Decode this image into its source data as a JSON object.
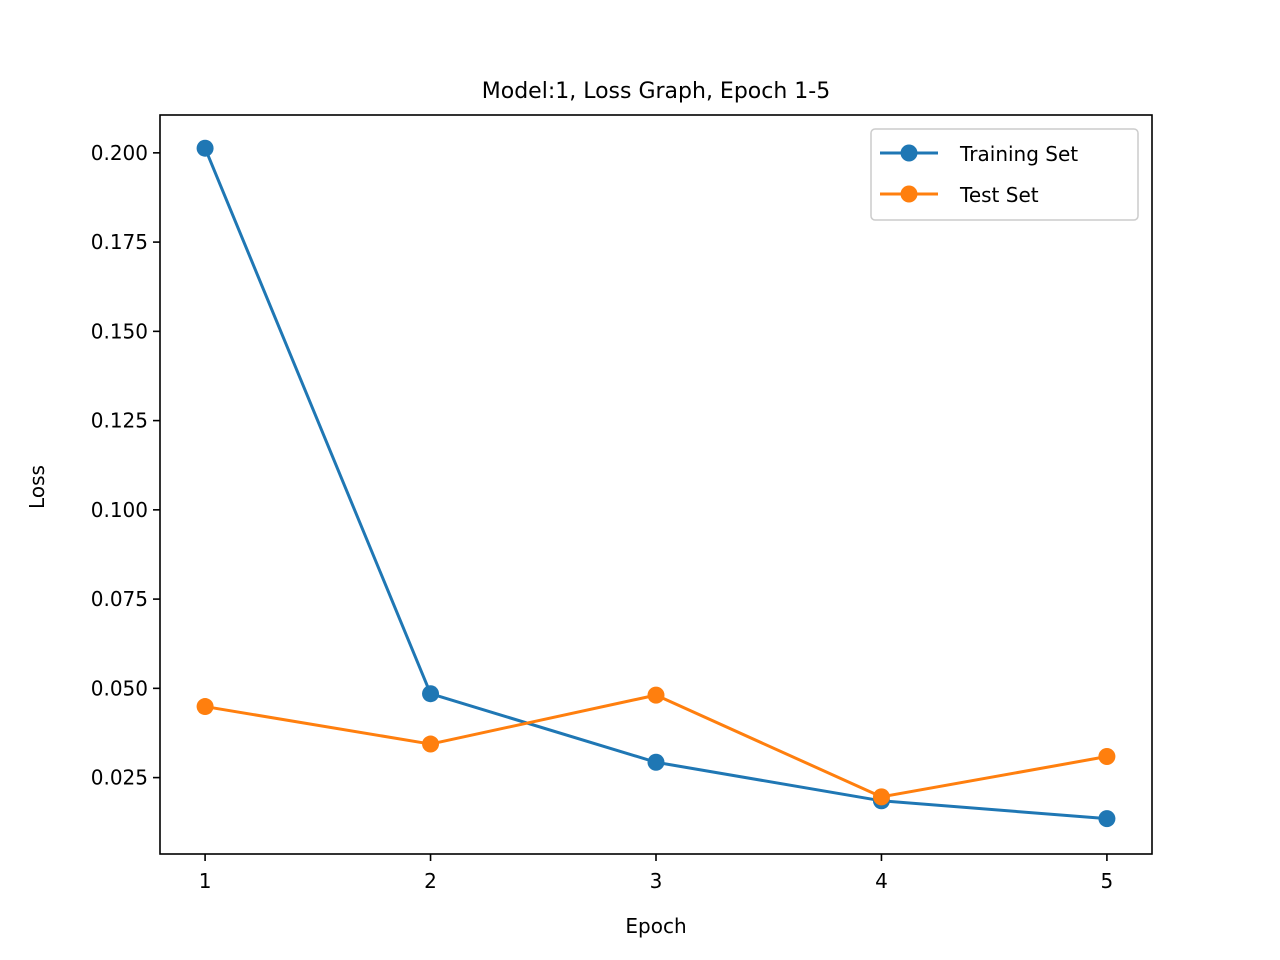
{
  "chart_data": {
    "type": "line",
    "title": "Model:1, Loss Graph, Epoch 1-5",
    "xlabel": "Epoch",
    "ylabel": "Loss",
    "x": [
      1,
      2,
      3,
      4,
      5
    ],
    "xlim": [
      0.8,
      5.2
    ],
    "ylim": [
      0.0036,
      0.2106
    ],
    "xticks": [
      1,
      2,
      3,
      4,
      5
    ],
    "xtick_labels": [
      "1",
      "2",
      "3",
      "4",
      "5"
    ],
    "yticks": [
      0.025,
      0.05,
      0.075,
      0.1,
      0.125,
      0.15,
      0.175,
      0.2
    ],
    "ytick_labels": [
      "0.025",
      "0.050",
      "0.075",
      "0.100",
      "0.125",
      "0.150",
      "0.175",
      "0.200"
    ],
    "grid": false,
    "legend_position": "top-right",
    "series": [
      {
        "name": "Training Set",
        "color": "#1f77b4",
        "marker": "circle",
        "values": [
          0.2013,
          0.0485,
          0.0293,
          0.0185,
          0.0135
        ]
      },
      {
        "name": "Test Set",
        "color": "#ff7f0e",
        "marker": "circle",
        "values": [
          0.0449,
          0.0344,
          0.0481,
          0.0196,
          0.0309
        ]
      }
    ]
  }
}
